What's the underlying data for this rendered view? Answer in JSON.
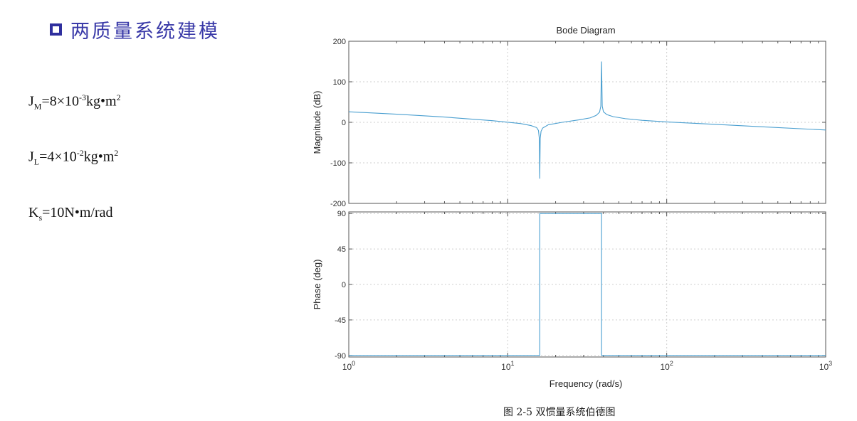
{
  "heading": {
    "icon": "square-bullet-icon",
    "text": "两质量系统建模",
    "color": "#3a3aa8"
  },
  "params": {
    "jm": {
      "sym": "J",
      "sub": "M",
      "eq": "=8×10",
      "exp": "-3",
      "unit": "kg•m",
      "unit_exp": "2"
    },
    "jl": {
      "sym": "J",
      "sub": "L",
      "eq": "=4×10",
      "exp": "-2",
      "unit": "kg•m",
      "unit_exp": "2"
    },
    "ks": {
      "sym": "K",
      "sub": "s",
      "eq": "=10N•m/rad"
    }
  },
  "caption": "图 2-5  双惯量系统伯德图",
  "chart_data": {
    "type": "line",
    "title": "Bode Diagram",
    "xlabel": "Frequency  (rad/s)",
    "x_scale": "log",
    "xlim": [
      1,
      1000
    ],
    "x_ticks": [
      {
        "base": "10",
        "exp": "0"
      },
      {
        "base": "10",
        "exp": "1"
      },
      {
        "base": "10",
        "exp": "2"
      },
      {
        "base": "10",
        "exp": "3"
      }
    ],
    "line_color": "#4a9fd0",
    "grid": true,
    "magnitude": {
      "ylabel": "Magnitude (dB)",
      "ylim": [
        -200,
        200
      ],
      "yticks": [
        "200",
        "100",
        "0",
        "-100",
        "-200"
      ],
      "tick_values": [
        200,
        100,
        0,
        -100,
        -200
      ],
      "points": [
        [
          1,
          26
        ],
        [
          2,
          20
        ],
        [
          4,
          13
        ],
        [
          8,
          4
        ],
        [
          12,
          -3
        ],
        [
          14,
          -8
        ],
        [
          15.2,
          -13
        ],
        [
          15.6,
          -20
        ],
        [
          15.8,
          -40
        ],
        [
          15.9,
          -139
        ],
        [
          16.0,
          -40
        ],
        [
          16.2,
          -22
        ],
        [
          16.6,
          -14
        ],
        [
          18,
          -6
        ],
        [
          22,
          0
        ],
        [
          28,
          6
        ],
        [
          33,
          11
        ],
        [
          36,
          17
        ],
        [
          37.8,
          25
        ],
        [
          38.5,
          40
        ],
        [
          38.9,
          150
        ],
        [
          39.3,
          40
        ],
        [
          40,
          26
        ],
        [
          42,
          19
        ],
        [
          46,
          14
        ],
        [
          55,
          9
        ],
        [
          70,
          5
        ],
        [
          100,
          1
        ],
        [
          200,
          -5
        ],
        [
          400,
          -11
        ],
        [
          1000,
          -19
        ]
      ]
    },
    "phase": {
      "ylabel": "Phase (deg)",
      "ylim": [
        -92,
        92
      ],
      "yticks": [
        "90",
        "45",
        "0",
        "-45",
        "-90"
      ],
      "tick_values": [
        90,
        45,
        0,
        -45,
        -90
      ],
      "points": [
        [
          1,
          -90
        ],
        [
          15.9,
          -90
        ],
        [
          15.9,
          90
        ],
        [
          38.9,
          90
        ],
        [
          38.9,
          -90
        ],
        [
          1000,
          -90
        ]
      ]
    }
  }
}
